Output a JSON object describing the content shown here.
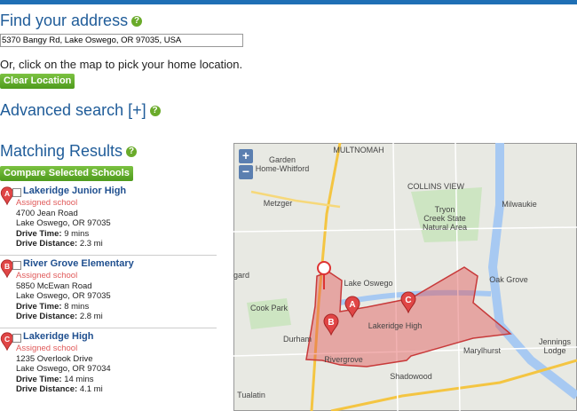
{
  "header": {
    "title": "Find your address",
    "help": "?"
  },
  "address": {
    "value": "5370 Bangy Rd, Lake Oswego, OR 97035, USA",
    "hint": "Or, click on the map to pick your home location.",
    "clear_button": "Clear Location"
  },
  "advanced_search": {
    "title": "Advanced search [+]",
    "help": "?"
  },
  "results": {
    "title": "Matching Results",
    "help": "?",
    "compare_button": "Compare Selected Schools",
    "schools": [
      {
        "marker": "A",
        "name": "Lakeridge Junior High",
        "status": "Assigned school",
        "street": "4700 Jean Road",
        "city": "Lake Oswego, OR 97035",
        "drive_time_label": "Drive Time:",
        "drive_time": "9 mins",
        "drive_distance_label": "Drive Distance:",
        "drive_distance": "2.3 mi"
      },
      {
        "marker": "B",
        "name": "River Grove Elementary",
        "status": "Assigned school",
        "street": "5850 McEwan Road",
        "city": "Lake Oswego, OR 97035",
        "drive_time_label": "Drive Time:",
        "drive_time": "8 mins",
        "drive_distance_label": "Drive Distance:",
        "drive_distance": "2.8 mi"
      },
      {
        "marker": "C",
        "name": "Lakeridge High",
        "status": "Assigned school",
        "street": "1235 Overlook Drive",
        "city": "Lake Oswego, OR 97034",
        "drive_time_label": "Drive Time:",
        "drive_time": "14 mins",
        "drive_distance_label": "Drive Distance:",
        "drive_distance": "4.1 mi"
      }
    ]
  },
  "map": {
    "zoom_in": "+",
    "zoom_out": "−",
    "labels": [
      {
        "lines": [
          "Garden",
          "Home-Whitford"
        ]
      },
      {
        "lines": [
          "MULTNOMAH"
        ]
      },
      {
        "lines": [
          "Metzger"
        ]
      },
      {
        "lines": [
          "Tryon",
          "Creek State",
          "Natural Area"
        ]
      },
      {
        "lines": [
          "Milwaukie"
        ]
      },
      {
        "lines": [
          "COLLINS VIEW"
        ]
      },
      {
        "lines": [
          "Lake Oswego"
        ]
      },
      {
        "lines": [
          "Oak Grove"
        ]
      },
      {
        "lines": [
          "Cook Park"
        ]
      },
      {
        "lines": [
          "Lakeridge High"
        ]
      },
      {
        "lines": [
          "Durham"
        ]
      },
      {
        "lines": [
          "Rivergrove"
        ]
      },
      {
        "lines": [
          "Marylhurst"
        ]
      },
      {
        "lines": [
          "Jennings",
          "Lodge"
        ]
      },
      {
        "lines": [
          "Shadowood"
        ]
      },
      {
        "lines": [
          "Tualatin"
        ]
      },
      {
        "lines": [
          "igard"
        ]
      }
    ]
  }
}
